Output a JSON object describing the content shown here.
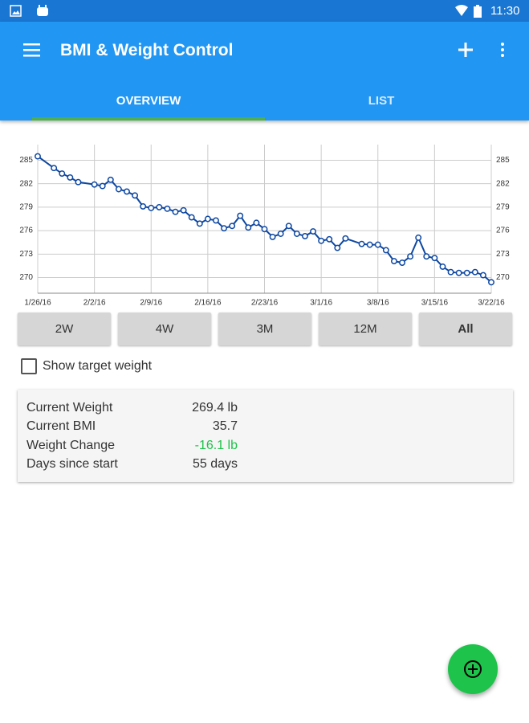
{
  "status_bar": {
    "time": "11:30"
  },
  "app_bar": {
    "title": "BMI & Weight Control"
  },
  "tabs": [
    "OVERVIEW",
    "LIST"
  ],
  "chart_data": {
    "type": "line",
    "x": [
      "1/26/16",
      "1/28/16",
      "1/29/16",
      "1/30/16",
      "1/31/16",
      "2/2/16",
      "2/3/16",
      "2/4/16",
      "2/5/16",
      "2/6/16",
      "2/7/16",
      "2/8/16",
      "2/9/16",
      "2/10/16",
      "2/11/16",
      "2/12/16",
      "2/13/16",
      "2/14/16",
      "2/15/16",
      "2/16/16",
      "2/17/16",
      "2/18/16",
      "2/19/16",
      "2/20/16",
      "2/21/16",
      "2/22/16",
      "2/23/16",
      "2/24/16",
      "2/25/16",
      "2/26/16",
      "2/27/16",
      "2/28/16",
      "2/29/16",
      "3/1/16",
      "3/2/16",
      "3/3/16",
      "3/4/16",
      "3/6/16",
      "3/7/16",
      "3/8/16",
      "3/9/16",
      "3/10/16",
      "3/11/16",
      "3/12/16",
      "3/13/16",
      "3/14/16",
      "3/15/16",
      "3/16/16",
      "3/17/16",
      "3/18/16",
      "3/19/16",
      "3/20/16",
      "3/21/16",
      "3/22/16"
    ],
    "series": [
      {
        "color": "#0d47a1",
        "values": [
          285.5,
          284.0,
          283.3,
          282.8,
          282.2,
          281.9,
          281.7,
          282.5,
          281.3,
          281.0,
          280.5,
          279.1,
          278.9,
          279.0,
          278.8,
          278.4,
          278.6,
          277.7,
          276.9,
          277.5,
          277.3,
          276.3,
          276.6,
          277.9,
          276.4,
          277.0,
          276.2,
          275.2,
          275.6,
          276.6,
          275.6,
          275.3,
          275.9,
          274.7,
          274.9,
          273.8,
          275.0,
          274.3,
          274.2,
          274.2,
          273.5,
          272.1,
          271.9,
          272.7,
          275.1,
          272.7,
          272.5,
          271.4,
          270.7,
          270.6,
          270.6,
          270.7,
          270.3,
          269.4
        ]
      }
    ],
    "xlim": [
      "1/26/16",
      "3/22/16"
    ],
    "xticks": [
      "1/26/16",
      "2/2/16",
      "2/9/16",
      "2/16/16",
      "2/23/16",
      "3/1/16",
      "3/8/16",
      "3/15/16",
      "3/22/16"
    ],
    "ylim": [
      268,
      287
    ],
    "yticks": [
      270,
      273,
      276,
      279,
      282,
      285
    ],
    "grid": true
  },
  "range_buttons": [
    "2W",
    "4W",
    "3M",
    "12M",
    "All"
  ],
  "checkbox": {
    "label": "Show target weight"
  },
  "stats": [
    [
      "Current Weight",
      "269.4 lb"
    ],
    [
      "Current BMI",
      "35.7"
    ],
    [
      "Weight Change",
      "-16.1 lb"
    ],
    [
      "Days since start",
      "55 days"
    ]
  ]
}
